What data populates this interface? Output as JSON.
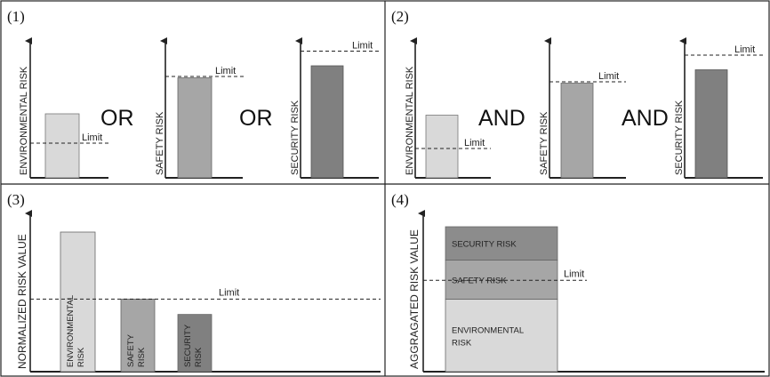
{
  "colors": {
    "light": "#d9d9d9",
    "mid": "#a6a6a6",
    "dark": "#808080",
    "security_stack": "#8c8c8c",
    "safety_stack": "#a6a6a6",
    "env_stack": "#d9d9d9",
    "frame": "#222222"
  },
  "panels": [
    {
      "number": "(1)",
      "operators": [
        "OR",
        "OR"
      ],
      "charts": [
        {
          "axis_label": "ENVIRONMENTAL RISK",
          "limit_label": "Limit",
          "value": 0.48,
          "limit": 0.26
        },
        {
          "axis_label": "SAFETY RISK",
          "limit_label": "Limit",
          "value": 0.75,
          "limit": 0.76
        },
        {
          "axis_label": "SECURITY RISK",
          "limit_label": "Limit",
          "value": 0.84,
          "limit": 0.95
        }
      ]
    },
    {
      "number": "(2)",
      "operators": [
        "AND",
        "AND"
      ],
      "charts": [
        {
          "axis_label": "ENVIRONMENTAL RISK",
          "limit_label": "Limit",
          "value": 0.47,
          "limit": 0.22
        },
        {
          "axis_label": "SAFETY RISK",
          "limit_label": "Limit",
          "value": 0.71,
          "limit": 0.72
        },
        {
          "axis_label": "SECURITY RISK",
          "limit_label": "Limit",
          "value": 0.81,
          "limit": 0.92
        }
      ]
    },
    {
      "number": "(3)",
      "y_label": "NORMALIZED RISK VALUE",
      "limit_label": "Limit",
      "limit": 0.52,
      "bars": [
        {
          "label_lines": [
            "ENVIRONMENTAL",
            "RISK"
          ],
          "value": 1.0
        },
        {
          "label_lines": [
            "SAFETY",
            "RISK"
          ],
          "value": 0.52
        },
        {
          "label_lines": [
            "SECURITY",
            "RISK"
          ],
          "value": 0.41
        }
      ]
    },
    {
      "number": "(4)",
      "y_label": "AGGRAGATED RISK VALUE",
      "limit_label": "Limit",
      "limit": 0.63,
      "segments": [
        {
          "label_lines": [
            "ENVIRONMENTAL",
            "RISK"
          ],
          "value": 0.5
        },
        {
          "label_lines": [
            "SAFETY RISK"
          ],
          "value": 0.27
        },
        {
          "label_lines": [
            "SECURITY RISK"
          ],
          "value": 0.23
        }
      ]
    }
  ]
}
